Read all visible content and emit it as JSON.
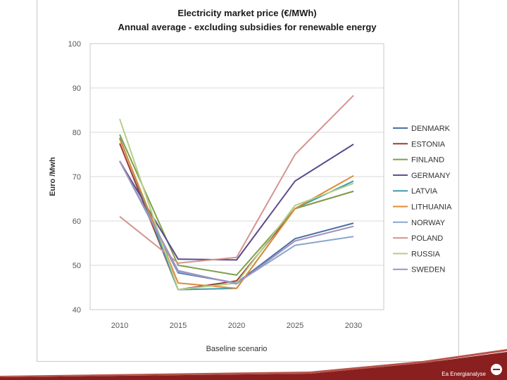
{
  "footer": {
    "brand": "Ea Energianalyse"
  },
  "chart_data": {
    "type": "line",
    "title": "Electricity market price (€/MWh)",
    "subtitle": "Annual average - excluding subsidies for renewable energy",
    "xlabel": "Baseline scenario",
    "ylabel": "Euro /Mwh",
    "ylim": [
      40,
      100
    ],
    "yticks": [
      40,
      50,
      60,
      70,
      80,
      90,
      100
    ],
    "categories": [
      "2010",
      "2015",
      "2020",
      "2025",
      "2030"
    ],
    "series": [
      {
        "name": "DENMARK",
        "color": "#4a6fa5",
        "values": [
          73.5,
          48.3,
          46.0,
          56.0,
          59.5
        ]
      },
      {
        "name": "ESTONIA",
        "color": "#9e3a35",
        "values": [
          77.5,
          44.5,
          46.5,
          62.8,
          66.7
        ]
      },
      {
        "name": "FINLAND",
        "color": "#7ea04a",
        "values": [
          79.5,
          50.0,
          47.8,
          62.8,
          66.7
        ]
      },
      {
        "name": "GERMANY",
        "color": "#5b4a8a",
        "values": [
          73.5,
          51.4,
          51.2,
          69.0,
          77.3
        ]
      },
      {
        "name": "LATVIA",
        "color": "#3f9aae",
        "values": [
          78.8,
          44.5,
          44.8,
          62.8,
          69.0
        ]
      },
      {
        "name": "LITHUANIA",
        "color": "#e08a35",
        "values": [
          78.5,
          46.0,
          44.8,
          62.8,
          70.2
        ]
      },
      {
        "name": "NORWAY",
        "color": "#8aa6cc",
        "values": [
          73.5,
          48.5,
          46.0,
          54.5,
          56.5
        ]
      },
      {
        "name": "POLAND",
        "color": "#d49590",
        "values": [
          61.0,
          50.5,
          51.8,
          75.0,
          88.3
        ]
      },
      {
        "name": "RUSSIA",
        "color": "#b2cf8a",
        "values": [
          83.0,
          44.5,
          46.0,
          63.5,
          68.5
        ]
      },
      {
        "name": "SWEDEN",
        "color": "#a093bf",
        "values": [
          73.5,
          48.8,
          45.8,
          55.5,
          58.8
        ]
      }
    ]
  }
}
